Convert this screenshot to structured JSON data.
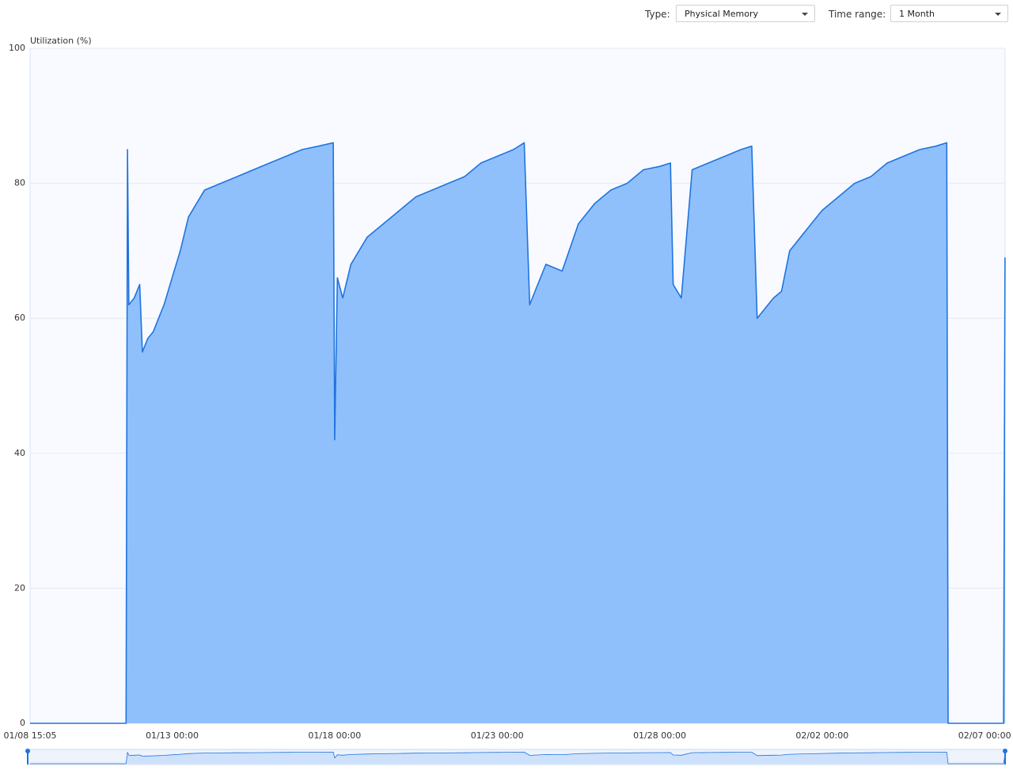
{
  "controls": {
    "type_label": "Type:",
    "type_value": "Physical Memory",
    "range_label": "Time range:",
    "range_value": "1 Month"
  },
  "chart_data": {
    "type": "area",
    "y_label": "Utilization (%)",
    "x": [
      "01/08 15:05",
      "01/11 14:00",
      "01/11 15:00",
      "01/11 16:00",
      "01/11 20:00",
      "01/12 00:00",
      "01/12 02:00",
      "01/12 06:00",
      "01/12 10:00",
      "01/12 14:00",
      "01/12 18:00",
      "01/13 00:00",
      "01/13 06:00",
      "01/13 12:00",
      "01/13 18:00",
      "01/14 00:00",
      "01/14 12:00",
      "01/15 00:00",
      "01/15 12:00",
      "01/16 00:00",
      "01/16 12:00",
      "01/17 00:00",
      "01/17 12:00",
      "01/17 23:00",
      "01/18 00:00",
      "01/18 02:00",
      "01/18 06:00",
      "01/18 12:00",
      "01/19 00:00",
      "01/19 12:00",
      "01/20 00:00",
      "01/20 12:00",
      "01/21 00:00",
      "01/21 12:00",
      "01/22 00:00",
      "01/22 12:00",
      "01/23 00:00",
      "01/23 12:00",
      "01/23 20:00",
      "01/24 00:00",
      "01/24 06:00",
      "01/24 12:00",
      "01/25 00:00",
      "01/25 12:00",
      "01/26 00:00",
      "01/26 12:00",
      "01/27 00:00",
      "01/27 12:00",
      "01/28 00:00",
      "01/28 08:00",
      "01/28 10:00",
      "01/28 16:00",
      "01/29 00:00",
      "01/29 12:00",
      "01/30 00:00",
      "01/30 12:00",
      "01/30 20:00",
      "01/31 00:00",
      "01/31 12:00",
      "01/31 18:00",
      "02/01 00:00",
      "02/01 12:00",
      "02/02 00:00",
      "02/02 12:00",
      "02/03 00:00",
      "02/03 12:00",
      "02/04 00:00",
      "02/04 12:00",
      "02/05 00:00",
      "02/05 12:00",
      "02/05 20:00",
      "02/05 21:00",
      "02/07 14:00",
      "02/07 15:00"
    ],
    "values": [
      0,
      0,
      85,
      62,
      63,
      65,
      55,
      57,
      58,
      60,
      62,
      66,
      70,
      75,
      77,
      79,
      80,
      81,
      82,
      83,
      84,
      85,
      85.5,
      86,
      42,
      66,
      63,
      68,
      72,
      74,
      76,
      78,
      79,
      80,
      81,
      83,
      84,
      85,
      86,
      62,
      65,
      68,
      67,
      74,
      77,
      79,
      80,
      82,
      82.5,
      83,
      65,
      63,
      82,
      83,
      84,
      85,
      85.5,
      60,
      63,
      64,
      70,
      73,
      76,
      78,
      80,
      81,
      83,
      84,
      85,
      85.5,
      86,
      0,
      0,
      69
    ],
    "color": "#1f74e0",
    "fill_color": "#90c0fc",
    "xlim": [
      "01/08 15:05",
      "02/07 15:05"
    ],
    "xticks": [
      "01/08 15:05",
      "01/13 00:00",
      "01/18 00:00",
      "01/23 00:00",
      "01/28 00:00",
      "02/02 00:00",
      "02/07 00:00"
    ],
    "ylim": [
      0,
      100
    ],
    "yticks": [
      0,
      20,
      40,
      60,
      80,
      100
    ],
    "grid": true
  }
}
